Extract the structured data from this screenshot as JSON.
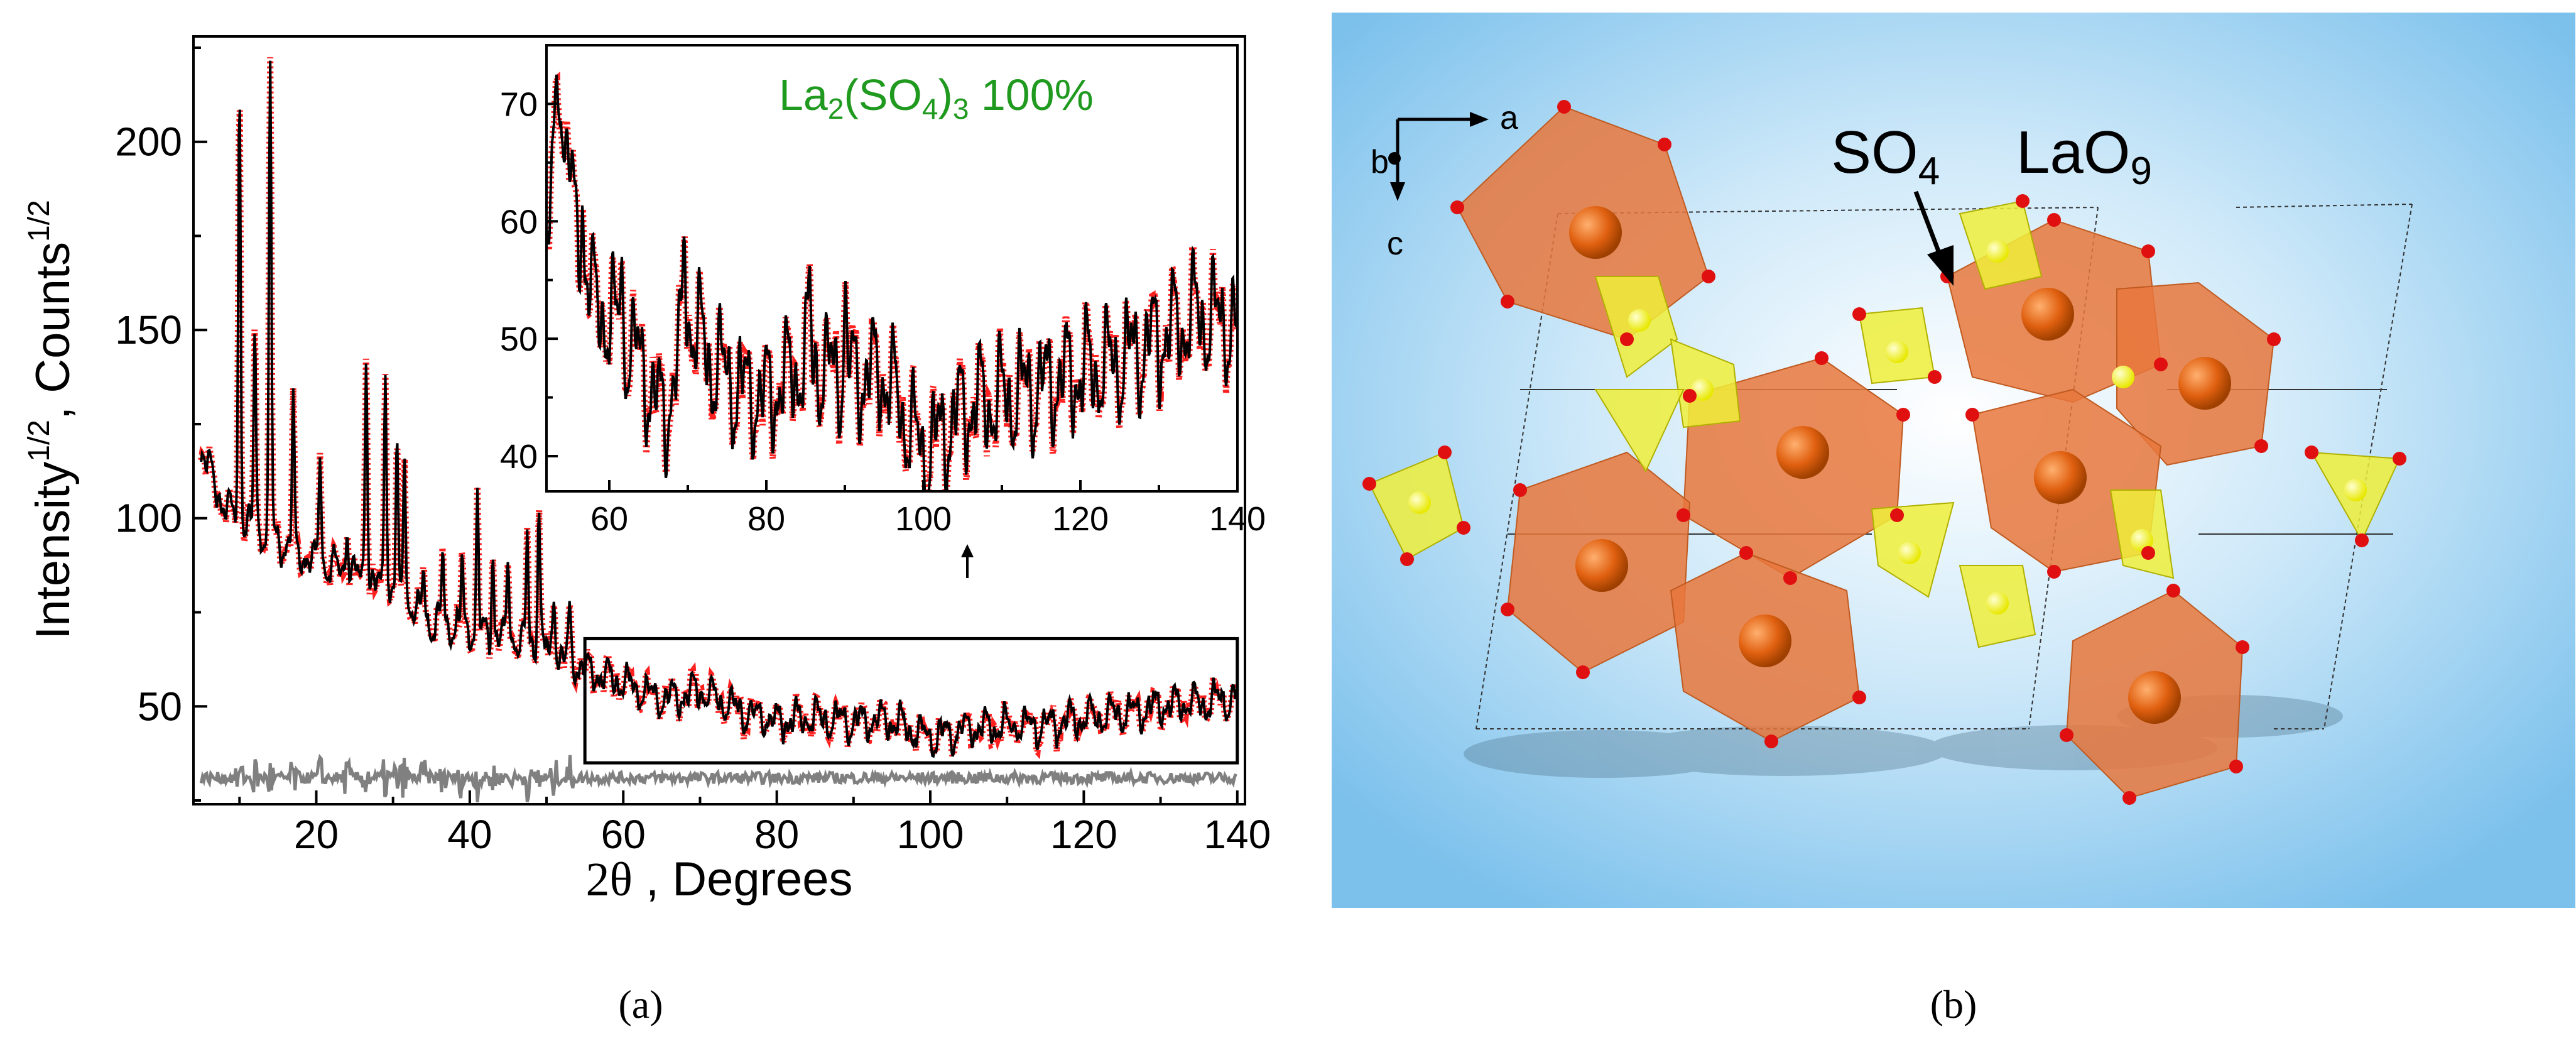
{
  "panels": {
    "a": {
      "label": "(a)"
    },
    "b": {
      "label": "(b)"
    }
  },
  "chart_data": {
    "type": "line",
    "xlabel_symbol": "2θ",
    "xlabel_rest": " , Degrees",
    "ylabel_main": "Intensity",
    "ylabel_sup": "1/2",
    "ylabel_mid": ", Counts",
    "ylabel_sup2": "1/2",
    "xlim": [
      4,
      141
    ],
    "ylim": [
      24,
      228
    ],
    "xticks": [
      20,
      40,
      60,
      80,
      100,
      120,
      140
    ],
    "yticks": [
      50,
      100,
      150,
      200
    ],
    "series": [
      {
        "role": "observed",
        "color": "#ff0000",
        "marker": "open-circle"
      },
      {
        "role": "calculated",
        "color": "#000000"
      },
      {
        "role": "difference",
        "color": "#808080"
      },
      {
        "role": "bragg-positions",
        "color": "#008000"
      }
    ],
    "envelope_x": [
      5,
      8,
      12,
      16,
      20,
      25,
      30,
      35,
      40,
      45,
      50,
      55,
      60,
      65,
      70,
      75,
      80,
      85,
      90,
      95,
      100,
      105,
      110,
      115,
      120,
      125,
      130,
      135,
      140
    ],
    "envelope_y": [
      118,
      103,
      97,
      93,
      88,
      85,
      80,
      72,
      70,
      68,
      65,
      60,
      56,
      52,
      54,
      49,
      46,
      47,
      46,
      46,
      42,
      44,
      45,
      45,
      47,
      48,
      50,
      51,
      52
    ],
    "peaks": [
      {
        "x": 10.0,
        "y": 214
      },
      {
        "x": 12.0,
        "y": 150
      },
      {
        "x": 14.0,
        "y": 221
      },
      {
        "x": 17.0,
        "y": 130
      },
      {
        "x": 20.5,
        "y": 120
      },
      {
        "x": 24.0,
        "y": 100
      },
      {
        "x": 26.5,
        "y": 148
      },
      {
        "x": 29.0,
        "y": 143
      },
      {
        "x": 30.5,
        "y": 120
      },
      {
        "x": 31.5,
        "y": 120
      },
      {
        "x": 34.0,
        "y": 88
      },
      {
        "x": 36.5,
        "y": 90
      },
      {
        "x": 39.0,
        "y": 88
      },
      {
        "x": 41.0,
        "y": 105
      },
      {
        "x": 43.0,
        "y": 92
      },
      {
        "x": 45.0,
        "y": 90
      },
      {
        "x": 47.5,
        "y": 95
      },
      {
        "x": 49.0,
        "y": 105
      },
      {
        "x": 51.0,
        "y": 83
      },
      {
        "x": 53.0,
        "y": 75
      }
    ],
    "difference_baseline": 31,
    "bragg_y": 15,
    "inset": {
      "title": "La",
      "title_sub1": "2",
      "title_mid": "(SO",
      "title_sub2": "4",
      "title_close": ")",
      "title_sub3": "3",
      "title_suffix": " 100%",
      "title_color": "#1f9a1f",
      "xlim": [
        52,
        140
      ],
      "ylim": [
        37,
        75
      ],
      "xticks": [
        60,
        80,
        100,
        120,
        140
      ],
      "yticks": [
        40,
        50,
        60,
        70
      ],
      "zoom_box_x": [
        55,
        140
      ],
      "zoom_box_y": [
        35,
        68
      ],
      "envelope_x": [
        52,
        53.5,
        55,
        58,
        61,
        64,
        67,
        70,
        73,
        76,
        80,
        85,
        90,
        95,
        100,
        105,
        110,
        115,
        120,
        125,
        130,
        135,
        140
      ],
      "envelope_y": [
        55,
        72,
        62,
        53,
        51,
        48,
        43,
        52,
        48,
        46,
        45,
        48,
        47,
        47,
        40,
        44,
        45,
        46,
        47,
        48,
        50,
        52,
        51
      ],
      "peaks": [
        {
          "x": 53.7,
          "y": 74
        },
        {
          "x": 54.8,
          "y": 67
        },
        {
          "x": 56.6,
          "y": 62
        },
        {
          "x": 61.5,
          "y": 56
        },
        {
          "x": 69.6,
          "y": 59
        },
        {
          "x": 85.5,
          "y": 54
        },
        {
          "x": 90.0,
          "y": 53
        }
      ]
    }
  },
  "crystal": {
    "axis_a": "a",
    "axis_b": "b",
    "axis_c": "c",
    "label_so4": "SO",
    "label_so4_sub": "4",
    "label_lao9": "LaO",
    "label_lao9_sub": "9",
    "colors": {
      "background": "#9ed2f2",
      "la_polyhedron": "#e8773c",
      "so4_tetrahedron": "#eeee3a",
      "oxygen": "#e01010",
      "la_atom": "#e06010",
      "s_atom": "#ffff20"
    }
  }
}
